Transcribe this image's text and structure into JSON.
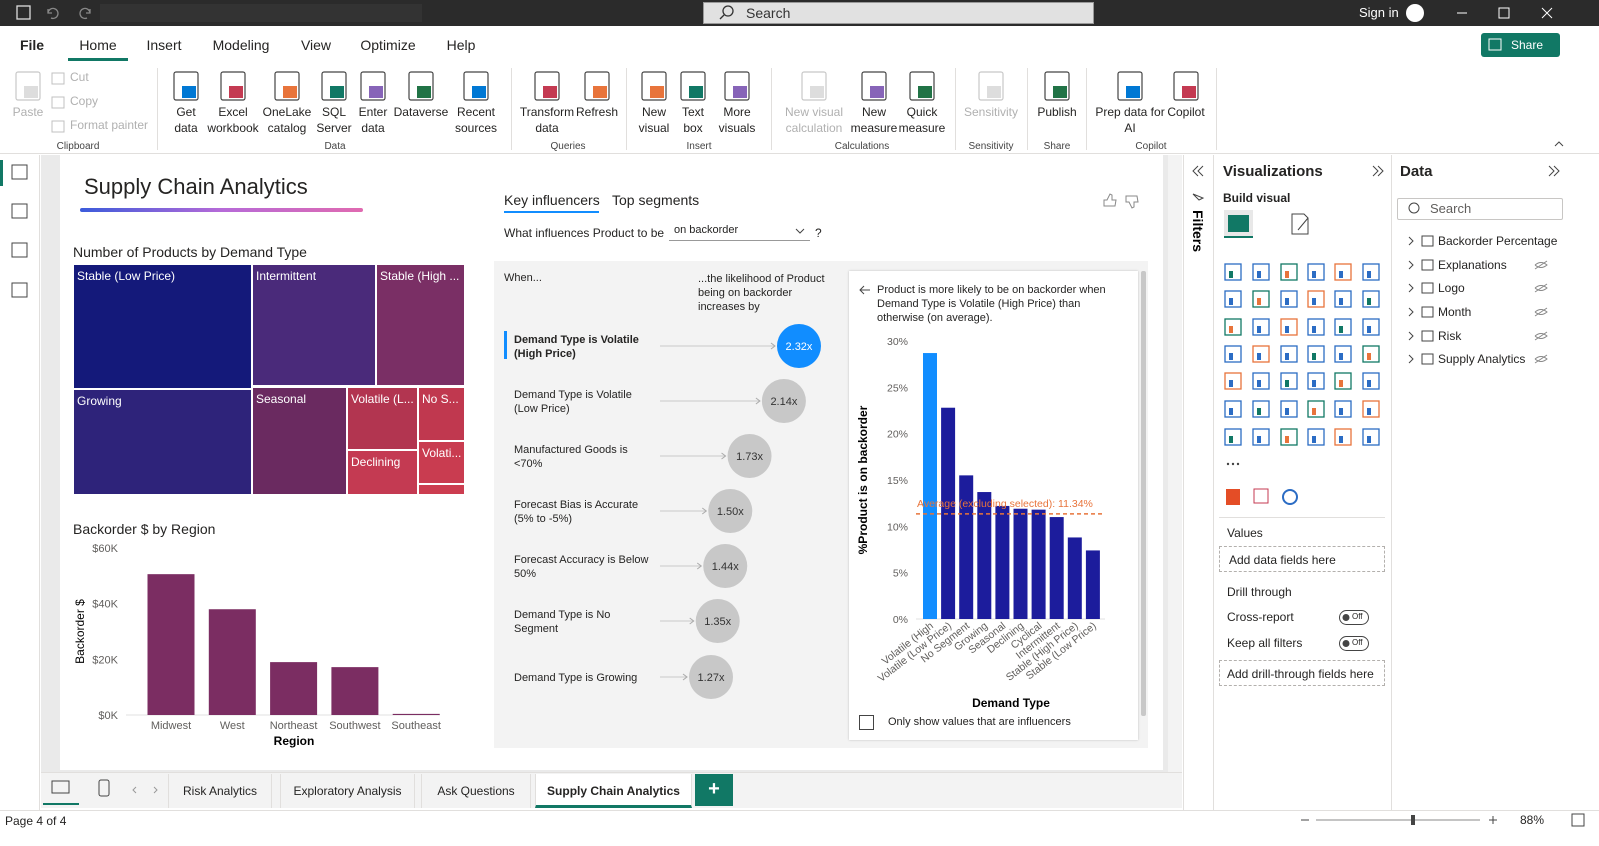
{
  "title_bar": {
    "search": "Search",
    "sign_in": "Sign in"
  },
  "menu": {
    "tabs": [
      "File",
      "Home",
      "Insert",
      "Modeling",
      "View",
      "Optimize",
      "Help"
    ],
    "share": "Share"
  },
  "ribbon": {
    "groups": [
      {
        "name": "Clipboard",
        "buttons": [
          "Paste",
          "Cut",
          "Copy",
          "Format painter"
        ]
      },
      {
        "name": "Data",
        "buttons": [
          "Get data",
          "Excel workbook",
          "OneLake catalog",
          "SQL Server",
          "Enter data",
          "Dataverse",
          "Recent sources"
        ]
      },
      {
        "name": "Queries",
        "buttons": [
          "Transform data",
          "Refresh"
        ]
      },
      {
        "name": "Insert",
        "buttons": [
          "New visual",
          "Text box",
          "More visuals"
        ]
      },
      {
        "name": "Calculations",
        "buttons": [
          "New visual calculation",
          "New measure",
          "Quick measure"
        ]
      },
      {
        "name": "Sensitivity",
        "buttons": [
          "Sensitivity"
        ]
      },
      {
        "name": "Share",
        "buttons": [
          "Publish"
        ]
      },
      {
        "name": "Copilot",
        "buttons": [
          "Prep data for AI",
          "Copilot"
        ]
      }
    ]
  },
  "report": {
    "title": "Supply Chain Analytics"
  },
  "treemap": {
    "title": "Number of Products by Demand Type",
    "cells": [
      "Stable (Low Price)",
      "Intermittent",
      "Stable (High ...",
      "Growing",
      "Seasonal",
      "Volatile (L...",
      "No S...",
      "Declining",
      "Volati..."
    ]
  },
  "chart_data": [
    {
      "type": "bar",
      "title": "Backorder $ by Region",
      "categories": [
        "Midwest",
        "West",
        "Northeast",
        "Southwest",
        "Southeast"
      ],
      "values": [
        50600,
        38000,
        19000,
        17200,
        400
      ],
      "color": "#7b2d62",
      "ylim": [
        0,
        60000
      ],
      "yticks": [
        {
          "value": 0,
          "label": "$0K"
        },
        {
          "value": 20000,
          "label": "$20K"
        },
        {
          "value": 40000,
          "label": "$40K"
        },
        {
          "value": 60000,
          "label": "$60K"
        }
      ],
      "y_label": "Backorder $",
      "x_label": "Region"
    },
    {
      "type": "bar",
      "title": "Product is more likely to be on backorder when Demand Type is Volatile (High Price) than otherwise (on average).",
      "categories": [
        "Volatile (High",
        "Volatile (Low Price)",
        "No Segment",
        "Growing",
        "Seasonal",
        "Declining",
        "Cyclical",
        "Intermittent",
        "Stable (High Price)",
        "Stable (Low Price)"
      ],
      "values": [
        28.7,
        22.8,
        15.5,
        13.7,
        12.2,
        11.9,
        11.8,
        11.0,
        8.8,
        7.4
      ],
      "colors": [
        "#118dff",
        "#1c1c9c",
        "#1c1c9c",
        "#1c1c9c",
        "#1c1c9c",
        "#1c1c9c",
        "#1c1c9c",
        "#1c1c9c",
        "#1c1c9c",
        "#1c1c9c"
      ],
      "ylim": [
        0,
        30
      ],
      "yticks": [
        {
          "value": 0,
          "label": "0%"
        },
        {
          "value": 5,
          "label": "5%"
        },
        {
          "value": 10,
          "label": "10%"
        },
        {
          "value": 15,
          "label": "15%"
        },
        {
          "value": 20,
          "label": "20%"
        },
        {
          "value": 25,
          "label": "25%"
        },
        {
          "value": 30,
          "label": "30%"
        }
      ],
      "average": {
        "value": 11.34,
        "label": "Average (excluding selected): 11.34%"
      },
      "y_label": "%Product is on backorder",
      "x_label": "Demand Type",
      "checkbox": "Only show values that are influencers"
    }
  ],
  "key_influencers": {
    "tabs": [
      "Key influencers",
      "Top segments"
    ],
    "question": "What influences Product to be",
    "dropdown": "on backorder",
    "help": "?",
    "when": "When...",
    "increase": "...the likelihood of Product being on backorder increases by",
    "influencers": {
      "labels": [
        "Demand Type is Volatile (High Price)",
        "Demand Type is Volatile (Low Price)",
        "Manufactured Goods is <70%",
        "Forecast Bias is Accurate (5% to -5%)",
        "Forecast Accuracy is Below 50%",
        "Demand Type is No Segment",
        "Demand Type is Growing"
      ],
      "values": [
        2.32,
        2.14,
        1.73,
        1.5,
        1.44,
        1.35,
        1.27
      ],
      "value_labels": [
        "2.32x",
        "2.14x",
        "1.73x",
        "1.50x",
        "1.44x",
        "1.35x",
        "1.27x"
      ]
    }
  },
  "filters": {
    "title": "Filters"
  },
  "visualizations": {
    "title": "Visualizations",
    "build": "Build visual",
    "values": "Values",
    "add_fields": "Add data fields here",
    "drill": "Drill through",
    "cross_report": {
      "label": "Cross-report",
      "state": "Off"
    },
    "keep_filters": {
      "label": "Keep all filters",
      "state": "Off"
    },
    "add_drill": "Add drill-through fields here"
  },
  "data_pane": {
    "title": "Data",
    "search": "Search",
    "fields": [
      "Backorder Percentage",
      "Explanations",
      "Logo",
      "Month",
      "Risk",
      "Supply Analytics"
    ]
  },
  "pages": {
    "tabs": [
      "Risk Analytics",
      "Exploratory Analysis",
      "Ask Questions",
      "Supply Chain Analytics"
    ],
    "add": "+"
  },
  "status": {
    "page": "Page 4 of 4",
    "zoom": "88%"
  }
}
